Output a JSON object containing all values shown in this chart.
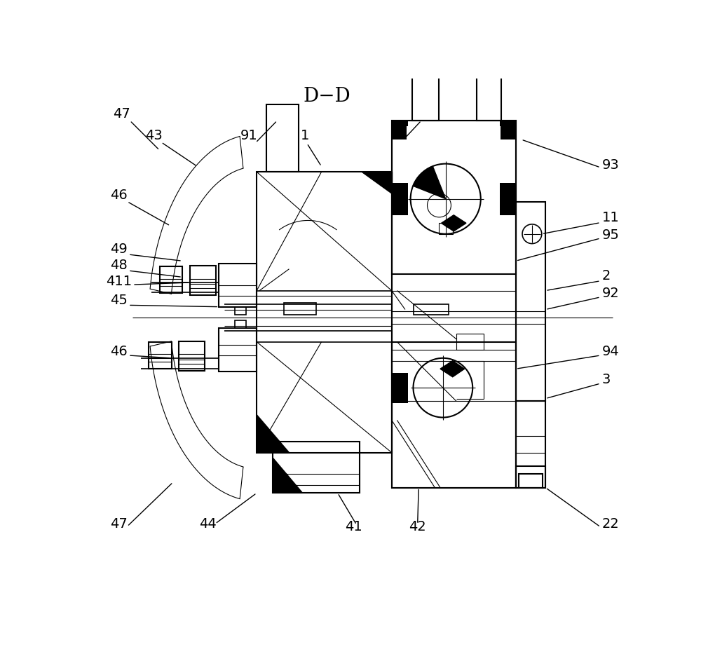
{
  "title": "D−D",
  "title_fontsize": 20,
  "line_color": "#000000",
  "bg_color": "#ffffff",
  "lw_main": 1.5,
  "lw_thin": 0.8,
  "lw_med": 1.2,
  "fs_label": 14
}
